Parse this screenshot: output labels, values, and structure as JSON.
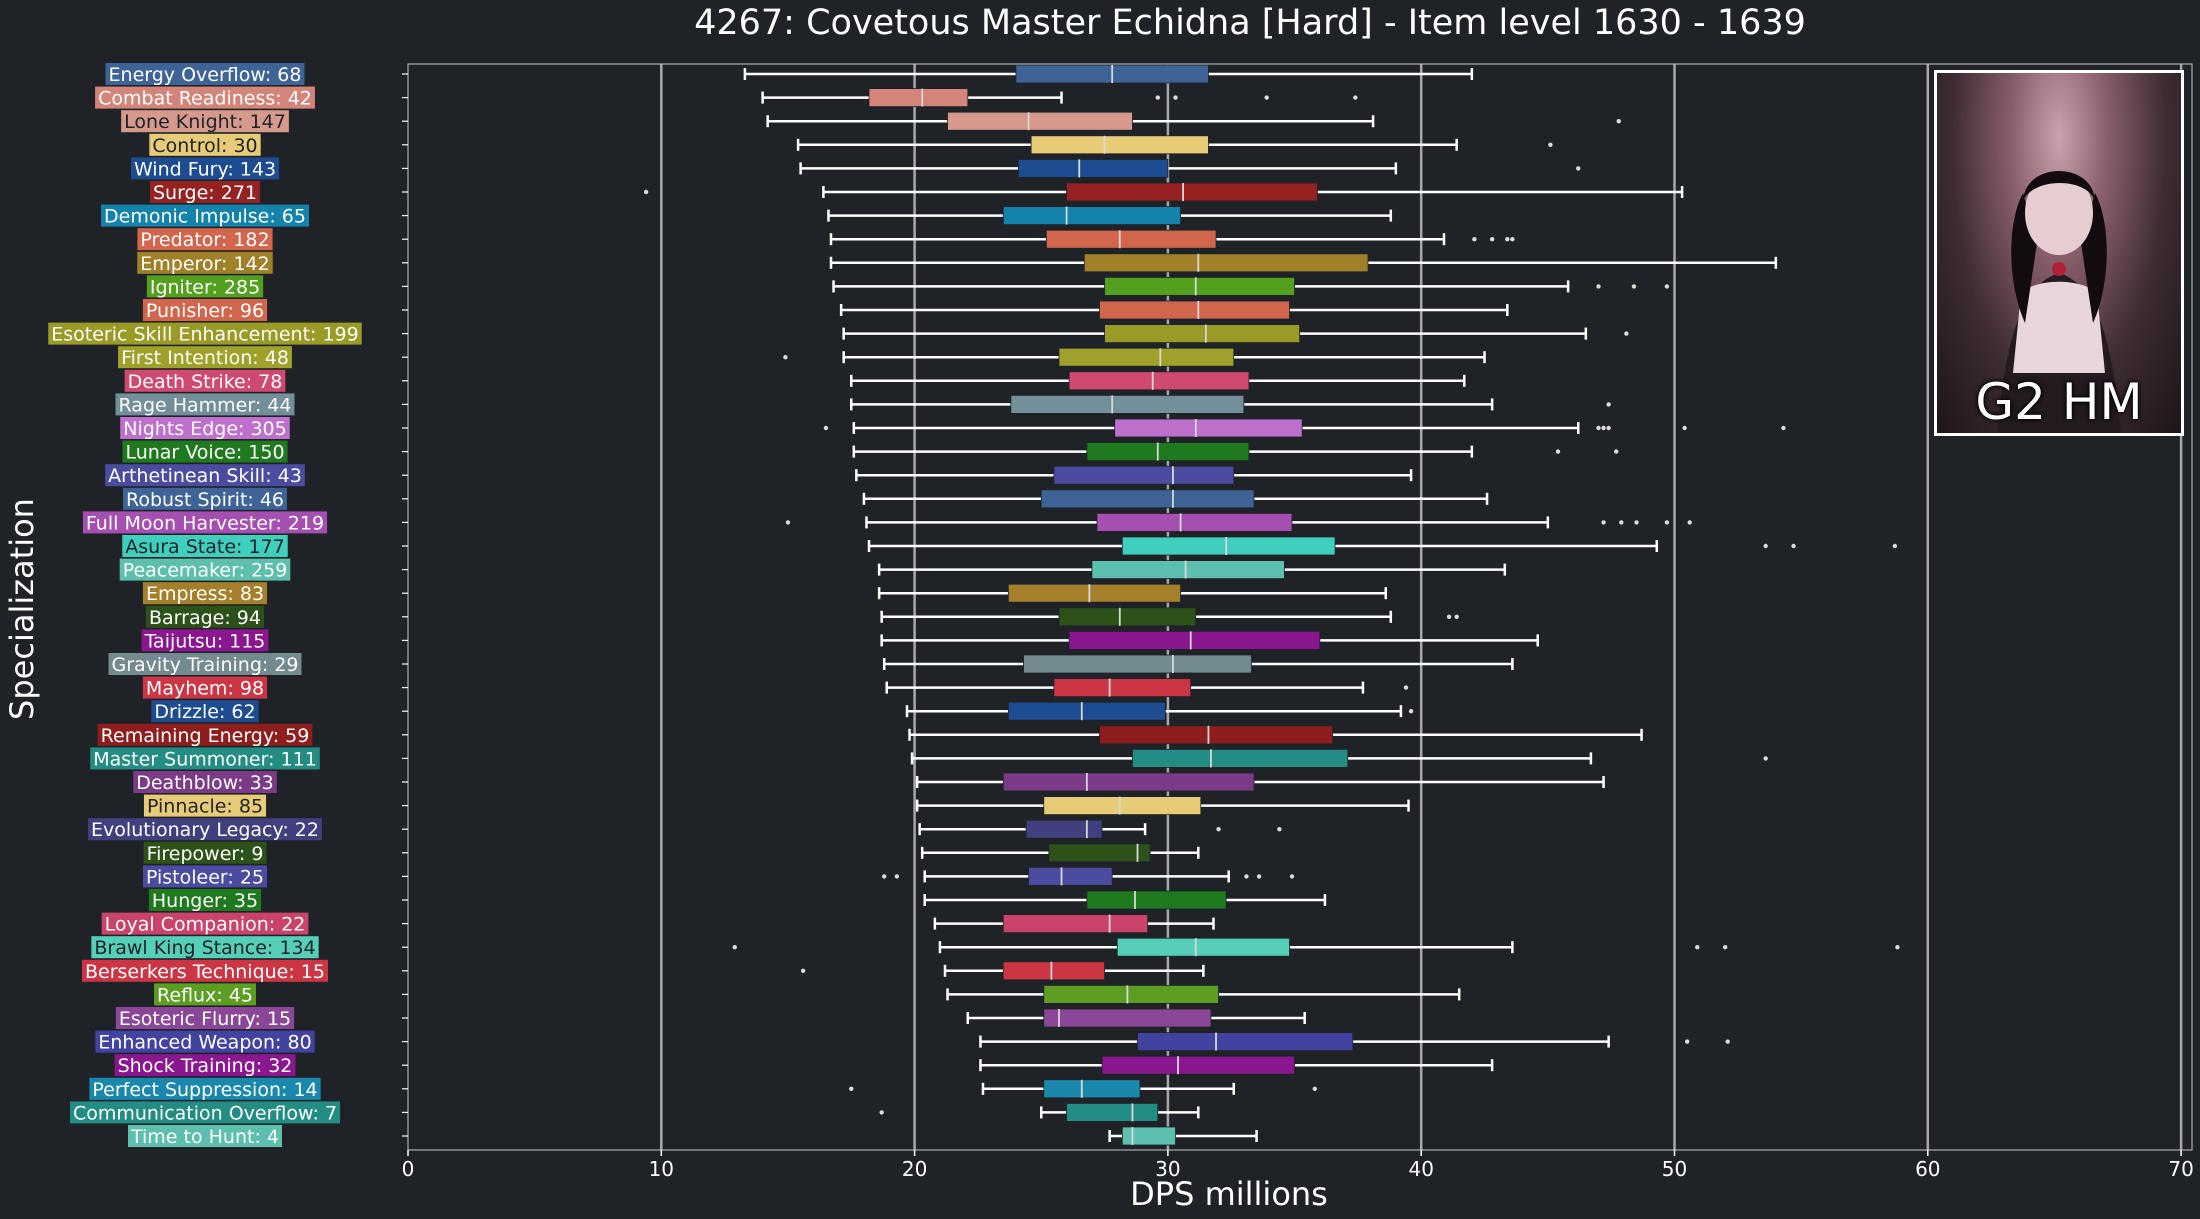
{
  "chart_data": {
    "type": "boxplot",
    "title": "4267: Covetous Master Echidna [Hard] - Item level 1630 - 1639",
    "xlabel": "DPS millions",
    "ylabel": "Specialization",
    "xlim": [
      0,
      70
    ],
    "xticks": [
      "0",
      "10",
      "20",
      "30",
      "40",
      "50",
      "60",
      "70"
    ],
    "gridlines_x": [
      10,
      20,
      30,
      40,
      50,
      60,
      70
    ],
    "orientation": "horizontal",
    "inset_caption": "G2 HM",
    "series": [
      {
        "label": "Energy Overflow: 68",
        "color": "#3e6396",
        "whislo": 13.3,
        "q1": 24.0,
        "med": 27.8,
        "q3": 31.6,
        "whishi": 42.0,
        "fliers": []
      },
      {
        "label": "Combat Readiness: 42",
        "color": "#d4857a",
        "whislo": 14.0,
        "q1": 18.2,
        "med": 20.3,
        "q3": 22.1,
        "whishi": 25.8,
        "fliers": [
          29.6,
          30.3,
          33.9,
          37.4
        ]
      },
      {
        "label": "Lone Knight: 147",
        "color": "#d69a8c",
        "whislo": 14.2,
        "q1": 21.3,
        "med": 24.5,
        "q3": 28.6,
        "whishi": 38.1,
        "fliers": [
          47.8
        ]
      },
      {
        "label": "Control: 30",
        "color": "#e7cb77",
        "whislo": 15.4,
        "q1": 24.6,
        "med": 27.5,
        "q3": 31.6,
        "whishi": 41.4,
        "fliers": [
          45.1
        ]
      },
      {
        "label": "Wind Fury: 143",
        "color": "#1e4c91",
        "whislo": 15.5,
        "q1": 24.1,
        "med": 26.5,
        "q3": 30.0,
        "whishi": 39.0,
        "fliers": [
          46.2
        ]
      },
      {
        "label": "Surge: 271",
        "color": "#962121",
        "whislo": 16.4,
        "q1": 26.0,
        "med": 30.6,
        "q3": 35.9,
        "whishi": 50.3,
        "fliers": [
          9.4
        ]
      },
      {
        "label": "Demonic Impulse: 65",
        "color": "#1383ab",
        "whislo": 16.6,
        "q1": 23.5,
        "med": 26.0,
        "q3": 30.5,
        "whishi": 38.8,
        "fliers": []
      },
      {
        "label": "Predator: 182",
        "color": "#d2664c",
        "whislo": 16.7,
        "q1": 25.2,
        "med": 28.1,
        "q3": 31.9,
        "whishi": 40.9,
        "fliers": [
          42.1,
          42.8,
          43.4,
          43.6
        ]
      },
      {
        "label": "Emperor: 142",
        "color": "#a0812a",
        "whislo": 16.7,
        "q1": 26.7,
        "med": 31.2,
        "q3": 37.9,
        "whishi": 54.0,
        "fliers": []
      },
      {
        "label": "Igniter: 285",
        "color": "#53a01f",
        "whislo": 16.8,
        "q1": 27.5,
        "med": 31.1,
        "q3": 35.0,
        "whishi": 45.8,
        "fliers": [
          47.0,
          48.4,
          49.7
        ]
      },
      {
        "label": "Punisher: 96",
        "color": "#d2664c",
        "whislo": 17.1,
        "q1": 27.3,
        "med": 31.2,
        "q3": 34.8,
        "whishi": 43.4,
        "fliers": []
      },
      {
        "label": "Esoteric Skill Enhancement: 199",
        "color": "#9a9a27",
        "whislo": 17.2,
        "q1": 27.5,
        "med": 31.5,
        "q3": 35.2,
        "whishi": 46.5,
        "fliers": [
          48.1
        ]
      },
      {
        "label": "First Intention: 48",
        "color": "#a0a12a",
        "whislo": 17.2,
        "q1": 25.7,
        "med": 29.7,
        "q3": 32.6,
        "whishi": 42.5,
        "fliers": [
          14.9
        ]
      },
      {
        "label": "Death Strike: 78",
        "color": "#d04a70",
        "whislo": 17.5,
        "q1": 26.1,
        "med": 29.4,
        "q3": 33.2,
        "whishi": 41.7,
        "fliers": []
      },
      {
        "label": "Rage Hammer: 44",
        "color": "#738f99",
        "whislo": 17.5,
        "q1": 23.8,
        "med": 27.8,
        "q3": 33.0,
        "whishi": 42.8,
        "fliers": [
          47.4
        ]
      },
      {
        "label": "Nights Edge: 305",
        "color": "#be70cd",
        "whislo": 17.6,
        "q1": 27.9,
        "med": 31.1,
        "q3": 35.3,
        "whishi": 46.2,
        "fliers": [
          16.5,
          47.0,
          47.2,
          47.4,
          50.4,
          54.3
        ]
      },
      {
        "label": "Lunar Voice: 150",
        "color": "#1f7a1f",
        "whislo": 17.6,
        "q1": 26.8,
        "med": 29.6,
        "q3": 33.2,
        "whishi": 42.0,
        "fliers": [
          45.4,
          47.7
        ]
      },
      {
        "label": "Arthetinean Skill: 43",
        "color": "#4b4ba0",
        "whislo": 17.7,
        "q1": 25.5,
        "med": 30.2,
        "q3": 32.6,
        "whishi": 39.6,
        "fliers": []
      },
      {
        "label": "Robust Spirit: 46",
        "color": "#3e6396",
        "whislo": 18.0,
        "q1": 25.0,
        "med": 30.2,
        "q3": 33.4,
        "whishi": 42.6,
        "fliers": []
      },
      {
        "label": "Full Moon Harvester: 219",
        "color": "#a550b0",
        "whislo": 18.1,
        "q1": 27.2,
        "med": 30.5,
        "q3": 34.9,
        "whishi": 45.0,
        "fliers": [
          15.0,
          47.2,
          47.9,
          48.5,
          49.7,
          50.6
        ]
      },
      {
        "label": "Asura State: 177",
        "color": "#3fcfbf",
        "whislo": 18.2,
        "q1": 28.2,
        "med": 32.3,
        "q3": 36.6,
        "whishi": 49.3,
        "fliers": [
          53.6,
          54.7,
          58.7
        ]
      },
      {
        "label": "Peacemaker: 259",
        "color": "#5dbfae",
        "whislo": 18.6,
        "q1": 27.0,
        "med": 30.7,
        "q3": 34.6,
        "whishi": 43.3,
        "fliers": []
      },
      {
        "label": "Empress: 83",
        "color": "#a67f2a",
        "whislo": 18.6,
        "q1": 23.7,
        "med": 26.9,
        "q3": 30.5,
        "whishi": 38.6,
        "fliers": []
      },
      {
        "label": "Barrage: 94",
        "color": "#2c5219",
        "whislo": 18.7,
        "q1": 25.7,
        "med": 28.1,
        "q3": 31.1,
        "whishi": 38.8,
        "fliers": [
          41.1,
          41.4
        ]
      },
      {
        "label": "Taijutsu: 115",
        "color": "#8a178f",
        "whislo": 18.7,
        "q1": 26.1,
        "med": 30.9,
        "q3": 36.0,
        "whishi": 44.6,
        "fliers": []
      },
      {
        "label": "Gravity Training: 29",
        "color": "#738a8f",
        "whislo": 18.8,
        "q1": 24.3,
        "med": 30.2,
        "q3": 33.3,
        "whishi": 43.6,
        "fliers": []
      },
      {
        "label": "Mayhem: 98",
        "color": "#cc3544",
        "whislo": 18.9,
        "q1": 25.5,
        "med": 27.7,
        "q3": 30.9,
        "whishi": 37.7,
        "fliers": [
          39.4
        ]
      },
      {
        "label": "Drizzle: 62",
        "color": "#1e4c91",
        "whislo": 19.7,
        "q1": 23.7,
        "med": 26.6,
        "q3": 29.9,
        "whishi": 39.2,
        "fliers": [
          39.6
        ]
      },
      {
        "label": "Remaining Energy: 59",
        "color": "#8e1d1d",
        "whislo": 19.8,
        "q1": 27.3,
        "med": 31.6,
        "q3": 36.5,
        "whishi": 48.7,
        "fliers": []
      },
      {
        "label": "Master Summoner: 111",
        "color": "#238d84",
        "whislo": 19.9,
        "q1": 28.6,
        "med": 31.7,
        "q3": 37.1,
        "whishi": 46.7,
        "fliers": [
          53.6
        ]
      },
      {
        "label": "Deathblow: 33",
        "color": "#7c3b86",
        "whislo": 20.1,
        "q1": 23.5,
        "med": 26.8,
        "q3": 33.4,
        "whishi": 47.2,
        "fliers": []
      },
      {
        "label": "Pinnacle: 85",
        "color": "#e7cb77",
        "whislo": 20.1,
        "q1": 25.1,
        "med": 28.1,
        "q3": 31.3,
        "whishi": 39.5,
        "fliers": []
      },
      {
        "label": "Evolutionary Legacy: 22",
        "color": "#40407f",
        "whislo": 20.2,
        "q1": 24.4,
        "med": 26.8,
        "q3": 27.4,
        "whishi": 29.1,
        "fliers": [
          32.0,
          34.4
        ]
      },
      {
        "label": "Firepower: 9",
        "color": "#2c5219",
        "whislo": 20.3,
        "q1": 25.3,
        "med": 28.8,
        "q3": 29.3,
        "whishi": 31.2,
        "fliers": []
      },
      {
        "label": "Pistoleer: 25",
        "color": "#4b4ba0",
        "whislo": 20.4,
        "q1": 24.5,
        "med": 25.8,
        "q3": 27.8,
        "whishi": 32.4,
        "fliers": [
          18.8,
          19.3,
          33.1,
          33.6,
          34.9
        ]
      },
      {
        "label": "Hunger: 35",
        "color": "#1f7a1f",
        "whislo": 20.4,
        "q1": 26.8,
        "med": 28.7,
        "q3": 32.3,
        "whishi": 36.2,
        "fliers": []
      },
      {
        "label": "Loyal Companion: 22",
        "color": "#c9436b",
        "whislo": 20.8,
        "q1": 23.5,
        "med": 27.7,
        "q3": 29.2,
        "whishi": 31.8,
        "fliers": []
      },
      {
        "label": "Brawl King Stance: 134",
        "color": "#56cfb9",
        "whislo": 21.0,
        "q1": 28.0,
        "med": 31.1,
        "q3": 34.8,
        "whishi": 43.6,
        "fliers": [
          12.9,
          50.9,
          52.0,
          58.8
        ]
      },
      {
        "label": "Berserkers Technique: 15",
        "color": "#cc3544",
        "whislo": 21.2,
        "q1": 23.5,
        "med": 25.4,
        "q3": 27.5,
        "whishi": 31.4,
        "fliers": [
          15.6
        ]
      },
      {
        "label": "Reflux: 45",
        "color": "#5c9e22",
        "whislo": 21.3,
        "q1": 25.1,
        "med": 28.4,
        "q3": 32.0,
        "whishi": 41.5,
        "fliers": []
      },
      {
        "label": "Esoteric Flurry: 15",
        "color": "#8b4797",
        "whislo": 22.1,
        "q1": 25.1,
        "med": 25.7,
        "q3": 31.7,
        "whishi": 35.4,
        "fliers": []
      },
      {
        "label": "Enhanced Weapon: 80",
        "color": "#4242a0",
        "whislo": 22.6,
        "q1": 28.8,
        "med": 31.9,
        "q3": 37.3,
        "whishi": 47.4,
        "fliers": [
          50.5,
          52.1
        ]
      },
      {
        "label": "Shock Training: 32",
        "color": "#8a178f",
        "whislo": 22.6,
        "q1": 27.4,
        "med": 30.4,
        "q3": 35.0,
        "whishi": 42.8,
        "fliers": []
      },
      {
        "label": "Perfect Suppression: 14",
        "color": "#1a88ad",
        "whislo": 22.7,
        "q1": 25.1,
        "med": 26.6,
        "q3": 28.9,
        "whishi": 32.6,
        "fliers": [
          17.5,
          35.8
        ]
      },
      {
        "label": "Communication Overflow: 7",
        "color": "#238d84",
        "whislo": 25.0,
        "q1": 26.0,
        "med": 28.6,
        "q3": 29.6,
        "whishi": 31.2,
        "fliers": [
          18.7
        ]
      },
      {
        "label": "Time to Hunt: 4",
        "color": "#5dbfae",
        "whislo": 27.7,
        "q1": 28.2,
        "med": 28.6,
        "q3": 30.3,
        "whishi": 33.5,
        "fliers": []
      }
    ]
  }
}
